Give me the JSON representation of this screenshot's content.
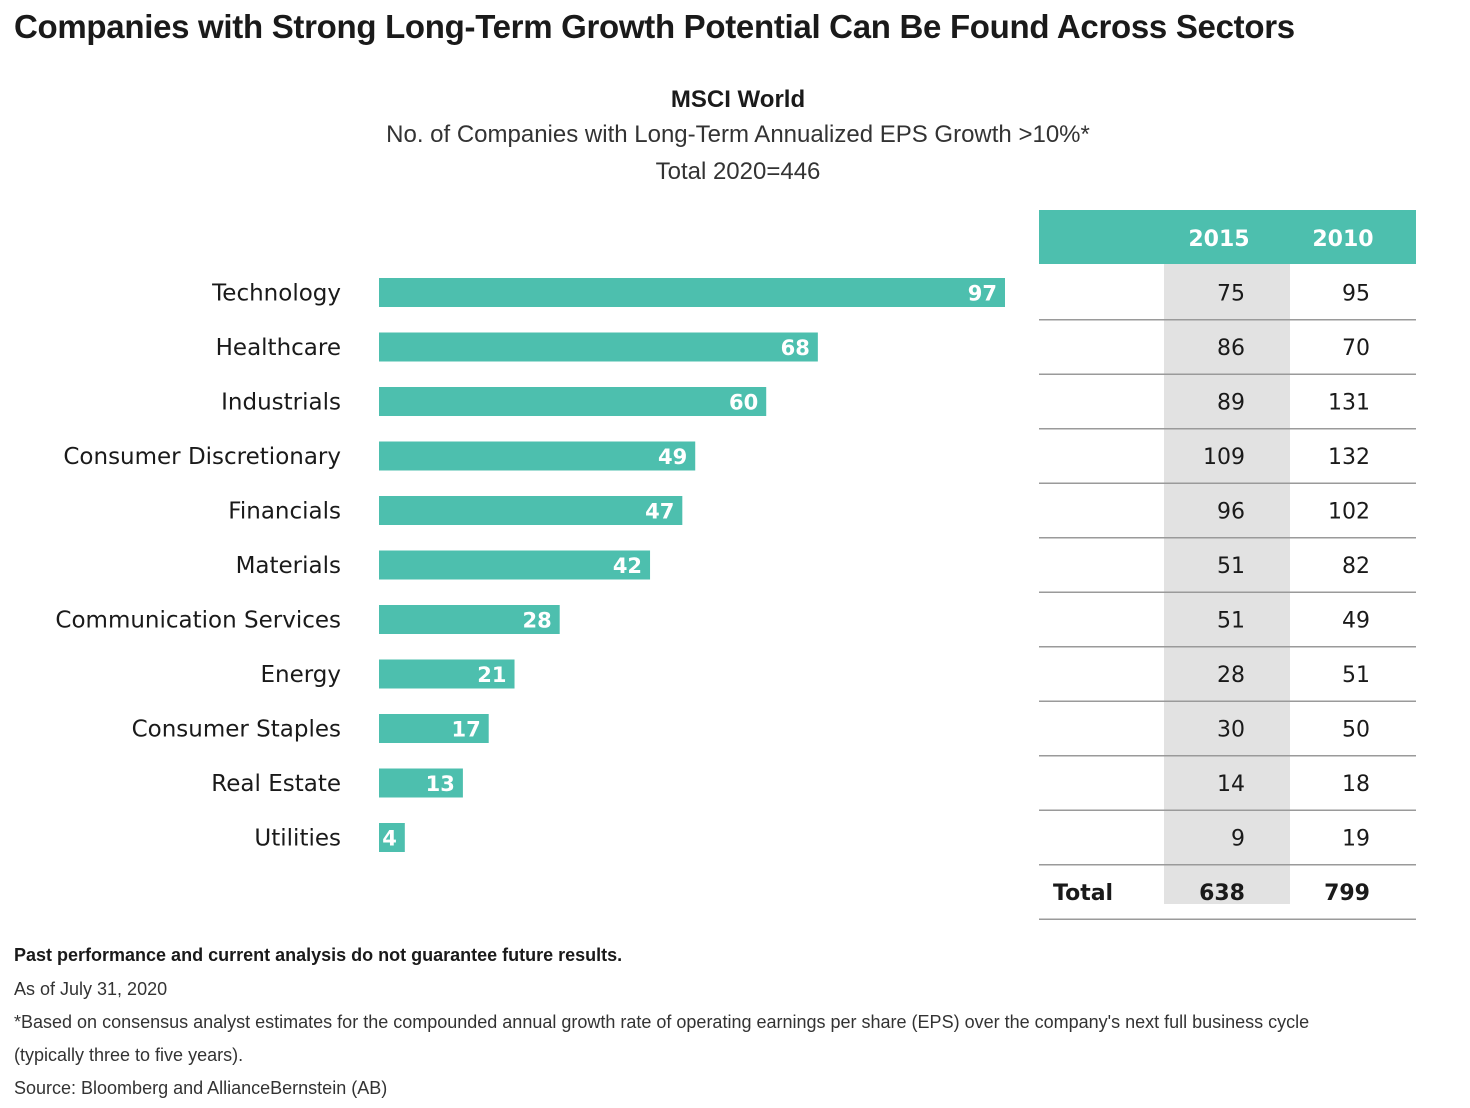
{
  "title": "Companies with Strong Long-Term Growth Potential Can Be Found Across Sectors",
  "subtitle_1": "MSCI World",
  "subtitle_2": "No. of Companies with Long-Term Annualized EPS Growth >10%*",
  "subtitle_3": "Total 2020=446",
  "colors": {
    "bar": "#4dbfae",
    "table_header": "#4dbfae",
    "table_shade": "#e2e2e2"
  },
  "chart_data": {
    "type": "bar",
    "orientation": "horizontal",
    "categories": [
      "Technology",
      "Healthcare",
      "Industrials",
      "Consumer Discretionary",
      "Financials",
      "Materials",
      "Communication Services",
      "Energy",
      "Consumer Staples",
      "Real Estate",
      "Utilities"
    ],
    "series": [
      {
        "values": [
          97,
          68,
          60,
          49,
          47,
          42,
          28,
          21,
          17,
          13,
          4
        ]
      }
    ],
    "data_labels": true,
    "gridlines": false
  },
  "table": {
    "headers": [
      "2015",
      "2010"
    ],
    "rows": [
      [
        "75",
        "95"
      ],
      [
        "86",
        "70"
      ],
      [
        "89",
        "131"
      ],
      [
        "109",
        "132"
      ],
      [
        "96",
        "102"
      ],
      [
        "51",
        "82"
      ],
      [
        "51",
        "49"
      ],
      [
        "28",
        "51"
      ],
      [
        "30",
        "50"
      ],
      [
        "14",
        "18"
      ],
      [
        "9",
        "19"
      ]
    ],
    "total_label": "Total",
    "totals": [
      "638",
      "799"
    ]
  },
  "footnotes": {
    "disclaimer": "Past performance and current analysis do not guarantee future results.",
    "as_of": "As of July 31, 2020",
    "note_line1": "*Based on consensus analyst estimates for the compounded annual growth rate of operating earnings per share (EPS) over the company's next full business cycle",
    "note_line2": "(typically three to five years).",
    "source": "Source: Bloomberg and AllianceBernstein (AB)"
  }
}
